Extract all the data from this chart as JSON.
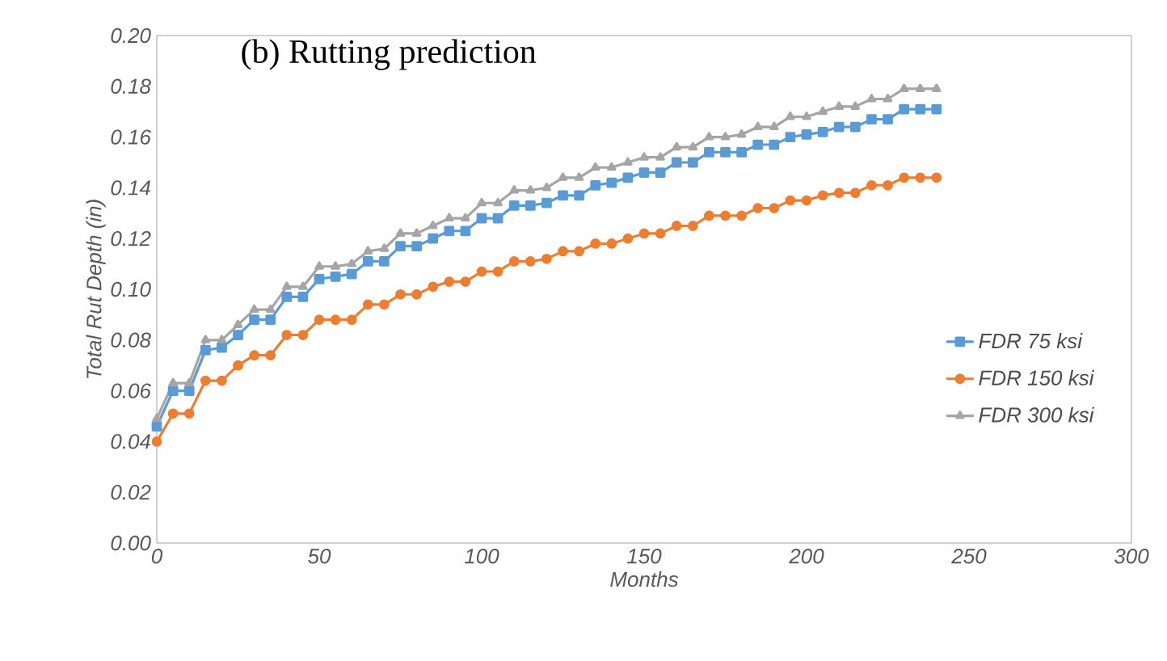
{
  "chart_data": {
    "type": "line",
    "title": "(b) Rutting prediction",
    "xlabel": "Months",
    "ylabel": "Total Rut Depth (in)",
    "x": [
      0,
      5,
      10,
      15,
      20,
      25,
      30,
      35,
      40,
      45,
      50,
      55,
      60,
      65,
      70,
      75,
      80,
      85,
      90,
      95,
      100,
      105,
      110,
      115,
      120,
      125,
      130,
      135,
      140,
      145,
      150,
      155,
      160,
      165,
      170,
      175,
      180,
      185,
      190,
      195,
      200,
      205,
      210,
      215,
      220,
      225,
      230,
      235,
      240
    ],
    "series": [
      {
        "name": "FDR 75 ksi",
        "color": "#5b9bd5",
        "marker": "square",
        "values": [
          0.046,
          0.06,
          0.06,
          0.076,
          0.077,
          0.082,
          0.088,
          0.088,
          0.097,
          0.097,
          0.104,
          0.105,
          0.106,
          0.111,
          0.111,
          0.117,
          0.117,
          0.12,
          0.123,
          0.123,
          0.128,
          0.128,
          0.133,
          0.133,
          0.134,
          0.137,
          0.137,
          0.141,
          0.142,
          0.144,
          0.146,
          0.146,
          0.15,
          0.15,
          0.154,
          0.154,
          0.154,
          0.157,
          0.157,
          0.16,
          0.161,
          0.162,
          0.164,
          0.164,
          0.167,
          0.167,
          0.171,
          0.171,
          0.171
        ]
      },
      {
        "name": "FDR 150 ksi",
        "color": "#ed7d31",
        "marker": "circle",
        "values": [
          0.04,
          0.051,
          0.051,
          0.064,
          0.064,
          0.07,
          0.074,
          0.074,
          0.082,
          0.082,
          0.088,
          0.088,
          0.088,
          0.094,
          0.094,
          0.098,
          0.098,
          0.101,
          0.103,
          0.103,
          0.107,
          0.107,
          0.111,
          0.111,
          0.112,
          0.115,
          0.115,
          0.118,
          0.118,
          0.12,
          0.122,
          0.122,
          0.125,
          0.125,
          0.129,
          0.129,
          0.129,
          0.132,
          0.132,
          0.135,
          0.135,
          0.137,
          0.138,
          0.138,
          0.141,
          0.141,
          0.144,
          0.144,
          0.144
        ]
      },
      {
        "name": "FDR 300 ksi",
        "color": "#a5a5a5",
        "marker": "triangle",
        "values": [
          0.049,
          0.063,
          0.063,
          0.08,
          0.08,
          0.086,
          0.092,
          0.092,
          0.101,
          0.101,
          0.109,
          0.109,
          0.11,
          0.115,
          0.116,
          0.122,
          0.122,
          0.125,
          0.128,
          0.128,
          0.134,
          0.134,
          0.139,
          0.139,
          0.14,
          0.144,
          0.144,
          0.148,
          0.148,
          0.15,
          0.152,
          0.152,
          0.156,
          0.156,
          0.16,
          0.16,
          0.161,
          0.164,
          0.164,
          0.168,
          0.168,
          0.17,
          0.172,
          0.172,
          0.175,
          0.175,
          0.179,
          0.179,
          0.179
        ]
      }
    ],
    "xlim": [
      0,
      300
    ],
    "xticks": [
      0,
      50,
      100,
      150,
      200,
      250,
      300
    ],
    "ylim": [
      0,
      0.2
    ],
    "yticks": [
      {
        "value": 0,
        "label": "0.00"
      },
      {
        "value": 0.02,
        "label": "0.02"
      },
      {
        "value": 0.04,
        "label": "0.04"
      },
      {
        "value": 0.06,
        "label": "0.06"
      },
      {
        "value": 0.08,
        "label": "0.08"
      },
      {
        "value": 0.1,
        "label": "0.10"
      },
      {
        "value": 0.12,
        "label": "0.12"
      },
      {
        "value": 0.14,
        "label": "0.14"
      },
      {
        "value": 0.16,
        "label": "0.16"
      },
      {
        "value": 0.18,
        "label": "0.18"
      },
      {
        "value": 0.2,
        "label": "0.20"
      }
    ],
    "grid": false,
    "legend": "bottom right",
    "line_style": "solid"
  }
}
